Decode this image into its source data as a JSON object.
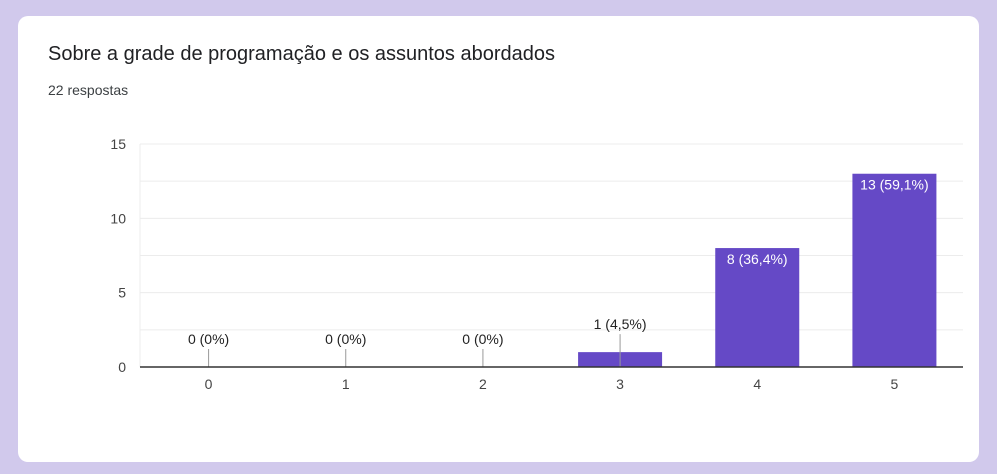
{
  "question": {
    "title": "Sobre a grade de programação e os assuntos abordados",
    "responses": "22 respostas"
  },
  "colors": {
    "bar": "#6549c6",
    "background": "#d1c9ec",
    "grid": "#ececec",
    "axis": "#333333"
  },
  "chart_data": {
    "type": "bar",
    "title": "Sobre a grade de programação e os assuntos abordados",
    "xlabel": "",
    "ylabel": "",
    "categories": [
      "0",
      "1",
      "2",
      "3",
      "4",
      "5"
    ],
    "values": [
      0,
      0,
      0,
      1,
      8,
      13
    ],
    "labels": [
      "0 (0%)",
      "0 (0%)",
      "0 (0%)",
      "1 (4,5%)",
      "8 (36,4%)",
      "13 (59,1%)"
    ],
    "ylim": [
      0,
      15
    ],
    "yticks": [
      0,
      5,
      10,
      15
    ],
    "grid": true,
    "legend": "none"
  }
}
